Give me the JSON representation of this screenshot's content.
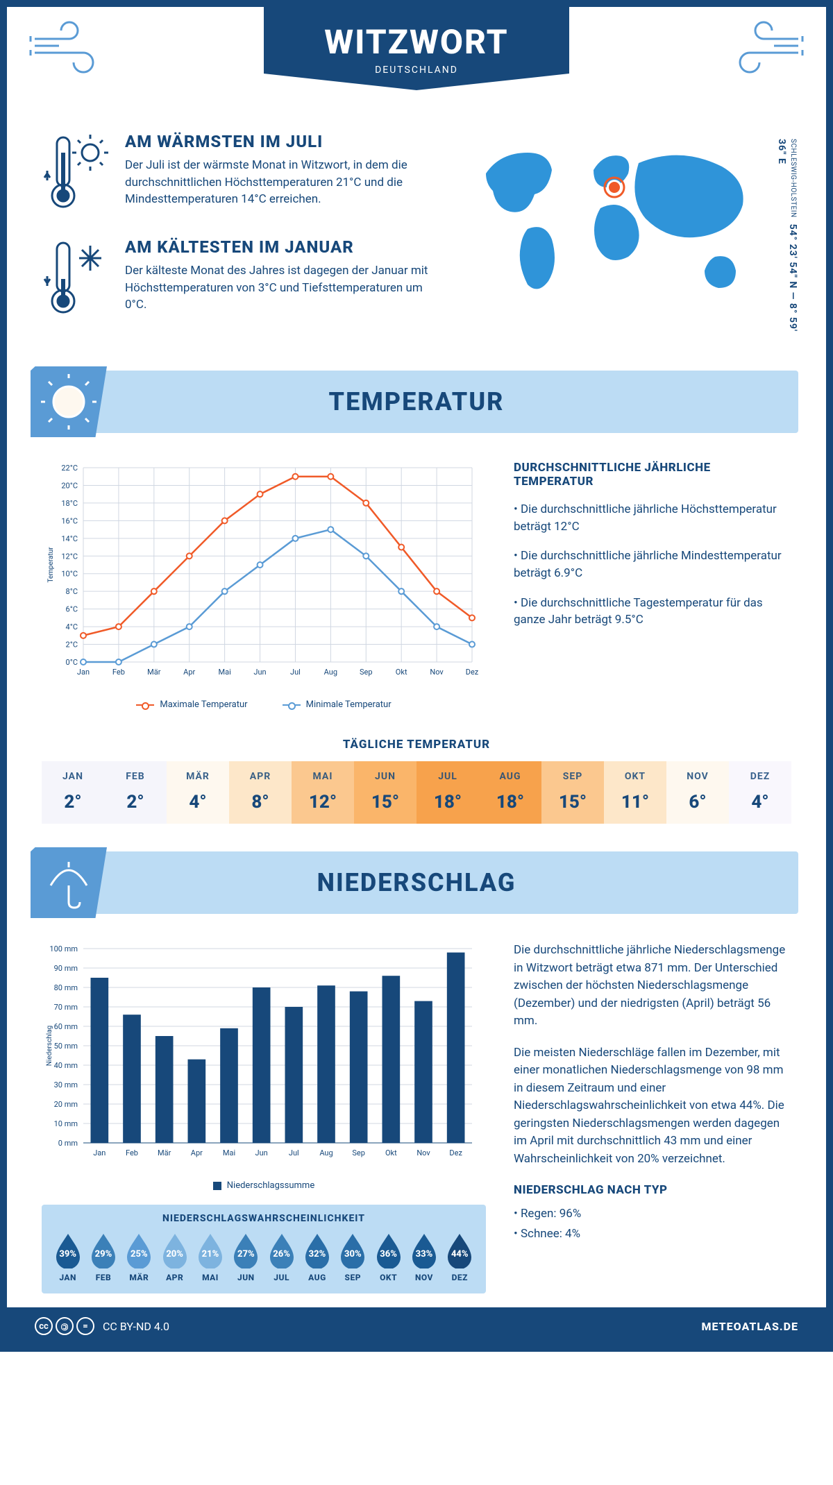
{
  "header": {
    "city": "WITZWORT",
    "country": "DEUTSCHLAND"
  },
  "coords": {
    "text": "54° 23' 54\" N — 8° 59' 36\" E",
    "region": "SCHLESWIG-HOLSTEIN"
  },
  "warmest": {
    "title": "AM WÄRMSTEN IM JULI",
    "text": "Der Juli ist der wärmste Monat in Witzwort, in dem die durchschnittlichen Höchsttemperaturen 21°C und die Mindesttemperaturen 14°C erreichen."
  },
  "coldest": {
    "title": "AM KÄLTESTEN IM JANUAR",
    "text": "Der kälteste Monat des Jahres ist dagegen der Januar mit Höchsttemperaturen von 3°C und Tiefsttemperaturen um 0°C."
  },
  "section_temp": "TEMPERATUR",
  "section_precip": "NIEDERSCHLAG",
  "temp_chart": {
    "months": [
      "Jan",
      "Feb",
      "Mär",
      "Apr",
      "Mai",
      "Jun",
      "Jul",
      "Aug",
      "Sep",
      "Okt",
      "Nov",
      "Dez"
    ],
    "max": [
      3,
      4,
      8,
      12,
      16,
      19,
      21,
      21,
      18,
      13,
      8,
      5
    ],
    "min": [
      0,
      0,
      2,
      4,
      8,
      11,
      14,
      15,
      12,
      8,
      4,
      2
    ],
    "ylabel": "Temperatur",
    "ylim": [
      0,
      22
    ],
    "ytick_step": 2,
    "max_color": "#f05a28",
    "min_color": "#5a9bd5",
    "grid_color": "#d0d7e2",
    "text_color": "#17487a",
    "legend_max": "Maximale Temperatur",
    "legend_min": "Minimale Temperatur",
    "label_fontsize": 11
  },
  "temp_info": {
    "title": "DURCHSCHNITTLICHE JÄHRLICHE TEMPERATUR",
    "b1": "• Die durchschnittliche jährliche Höchsttemperatur beträgt 12°C",
    "b2": "• Die durchschnittliche jährliche Mindesttemperatur beträgt 6.9°C",
    "b3": "• Die durchschnittliche Tagestemperatur für das ganze Jahr beträgt 9.5°C"
  },
  "daily_title": "TÄGLICHE TEMPERATUR",
  "daily": {
    "months": [
      "JAN",
      "FEB",
      "MÄR",
      "APR",
      "MAI",
      "JUN",
      "JUL",
      "AUG",
      "SEP",
      "OKT",
      "NOV",
      "DEZ"
    ],
    "values": [
      "2°",
      "2°",
      "4°",
      "8°",
      "12°",
      "15°",
      "18°",
      "18°",
      "15°",
      "11°",
      "6°",
      "4°"
    ],
    "colors": [
      "#f5f5fb",
      "#f5f5fb",
      "#fef8ef",
      "#fde7c9",
      "#fbc88f",
      "#fab56a",
      "#f7a24c",
      "#f7a24c",
      "#fbc88f",
      "#fde7c9",
      "#fef8ef",
      "#f9f7fd"
    ]
  },
  "precip_chart": {
    "months": [
      "Jan",
      "Feb",
      "Mär",
      "Apr",
      "Mai",
      "Jun",
      "Jul",
      "Aug",
      "Sep",
      "Okt",
      "Nov",
      "Dez"
    ],
    "values": [
      85,
      66,
      55,
      43,
      59,
      80,
      70,
      81,
      78,
      86,
      73,
      98
    ],
    "ylabel": "Niederschlag",
    "ylim": [
      0,
      100
    ],
    "ytick_step": 10,
    "bar_color": "#17487a",
    "grid_color": "#d0d7e2",
    "legend": "Niederschlagssumme",
    "label_fontsize": 11
  },
  "precip_text": {
    "p1": "Die durchschnittliche jährliche Niederschlagsmenge in Witzwort beträgt etwa 871 mm. Der Unterschied zwischen der höchsten Niederschlagsmenge (Dezember) und der niedrigsten (April) beträgt 56 mm.",
    "p2": "Die meisten Niederschläge fallen im Dezember, mit einer monatlichen Niederschlagsmenge von 98 mm in diesem Zeitraum und einer Niederschlagswahrscheinlichkeit von etwa 44%. Die geringsten Niederschlagsmengen werden dagegen im April mit durchschnittlich 43 mm und einer Wahrscheinlichkeit von 20% verzeichnet.",
    "type_title": "NIEDERSCHLAG NACH TYP",
    "type1": "• Regen: 96%",
    "type2": "• Schnee: 4%"
  },
  "prob": {
    "title": "NIEDERSCHLAGSWAHRSCHEINLICHKEIT",
    "months": [
      "JAN",
      "FEB",
      "MÄR",
      "APR",
      "MAI",
      "JUN",
      "JUL",
      "AUG",
      "SEP",
      "OKT",
      "NOV",
      "DEZ"
    ],
    "pct": [
      "39%",
      "29%",
      "25%",
      "20%",
      "21%",
      "27%",
      "26%",
      "32%",
      "30%",
      "36%",
      "33%",
      "44%"
    ],
    "colors": [
      "#1a5a93",
      "#3b80b8",
      "#5a9bd5",
      "#7db3df",
      "#7db3df",
      "#3b80b8",
      "#3b80b8",
      "#2a6ea8",
      "#2a6ea8",
      "#1a5a93",
      "#1a5a93",
      "#17487a"
    ]
  },
  "footer": {
    "license": "CC BY-ND 4.0",
    "site": "METEOATLAS.DE"
  }
}
